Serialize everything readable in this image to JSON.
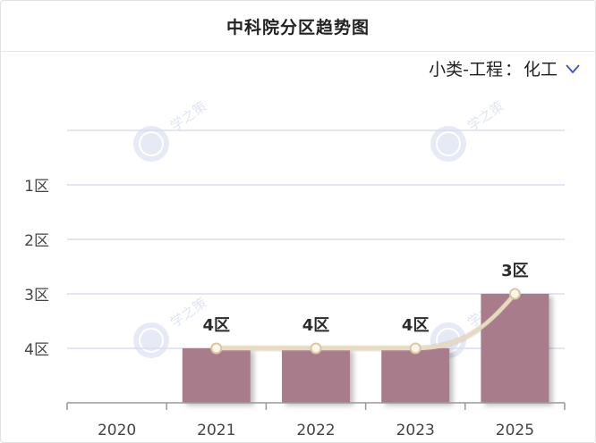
{
  "header": {
    "title": "中科院分区趋势图"
  },
  "filter": {
    "category_label": "小类-工程",
    "colon": "：",
    "value": "化工",
    "chevron_icon": "chevron-down-icon"
  },
  "watermark": {
    "text": "学之策",
    "icon": "logo-seal-icon"
  },
  "chart_data": {
    "type": "bar",
    "title": "中科院分区趋势图",
    "categories": [
      "2020",
      "2021",
      "2022",
      "2023",
      "2025"
    ],
    "values": [
      null,
      4,
      4,
      4,
      3
    ],
    "data_labels": [
      "",
      "4区",
      "4区",
      "4区",
      "3区"
    ],
    "y_axis": {
      "inverted": true,
      "ticks": [
        {
          "value": 1,
          "label": "1区"
        },
        {
          "value": 2,
          "label": "2区"
        },
        {
          "value": 3,
          "label": "3区"
        },
        {
          "value": 4,
          "label": "4区"
        }
      ],
      "range": [
        0,
        5
      ]
    },
    "trend_line": true,
    "grid": true,
    "legend": "none",
    "colors": {
      "bar": "#a97b8c",
      "line": "#e8d9c2",
      "marker": "#fdf6ea",
      "grid": "#dcdcf2",
      "axis": "#999999"
    }
  }
}
